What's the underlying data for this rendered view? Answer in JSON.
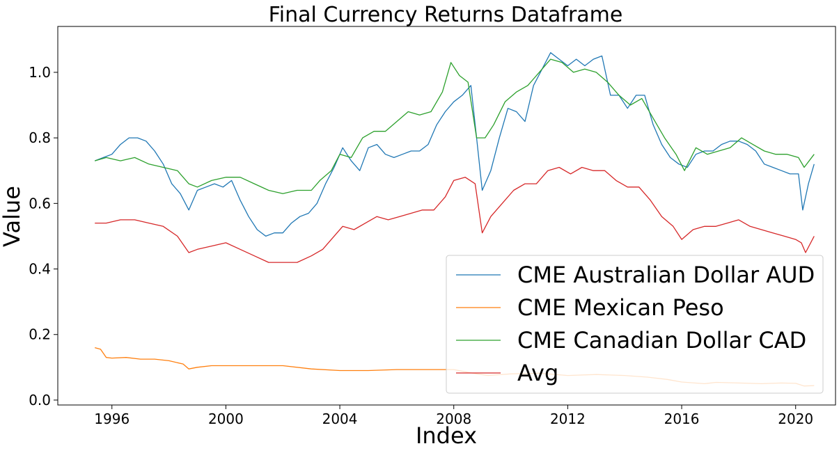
{
  "chart_data": {
    "type": "line",
    "title": "Final Currency Returns Dataframe",
    "xlabel": "Index",
    "ylabel": "Value",
    "xlim": [
      1994.1,
      2021.4
    ],
    "ylim": [
      -0.015,
      1.14
    ],
    "x_ticks": [
      {
        "value": 1996,
        "label": "1996"
      },
      {
        "value": 2000,
        "label": "2000"
      },
      {
        "value": 2004,
        "label": "2004"
      },
      {
        "value": 2008,
        "label": "2008"
      },
      {
        "value": 2012,
        "label": "2012"
      },
      {
        "value": 2016,
        "label": "2016"
      },
      {
        "value": 2020,
        "label": "2020"
      }
    ],
    "y_ticks": [
      {
        "value": 0.0,
        "label": "0.0"
      },
      {
        "value": 0.2,
        "label": "0.2"
      },
      {
        "value": 0.4,
        "label": "0.4"
      },
      {
        "value": 0.6,
        "label": "0.6"
      },
      {
        "value": 0.8,
        "label": "0.8"
      },
      {
        "value": 1.0,
        "label": "1.0"
      }
    ],
    "grid": false,
    "legend_position": "lower-right",
    "series": [
      {
        "name": "CME Australian Dollar AUD",
        "color": "#1f77b4",
        "x": [
          1995.4,
          1995.7,
          1996.0,
          1996.3,
          1996.6,
          1996.9,
          1997.2,
          1997.5,
          1997.8,
          1998.1,
          1998.4,
          1998.7,
          1999.0,
          1999.3,
          1999.6,
          1999.9,
          2000.2,
          2000.5,
          2000.8,
          2001.1,
          2001.4,
          2001.7,
          2002.0,
          2002.3,
          2002.6,
          2002.9,
          2003.2,
          2003.5,
          2003.8,
          2004.1,
          2004.4,
          2004.7,
          2005.0,
          2005.3,
          2005.6,
          2005.9,
          2006.2,
          2006.5,
          2006.8,
          2007.1,
          2007.4,
          2007.7,
          2008.0,
          2008.3,
          2008.6,
          2008.8,
          2009.0,
          2009.3,
          2009.6,
          2009.9,
          2010.2,
          2010.5,
          2010.8,
          2011.1,
          2011.4,
          2011.7,
          2012.0,
          2012.3,
          2012.6,
          2012.9,
          2013.2,
          2013.5,
          2013.8,
          2014.1,
          2014.4,
          2014.7,
          2015.0,
          2015.3,
          2015.6,
          2015.9,
          2016.2,
          2016.5,
          2016.8,
          2017.1,
          2017.4,
          2017.7,
          2018.0,
          2018.3,
          2018.6,
          2018.9,
          2019.2,
          2019.5,
          2019.8,
          2020.1,
          2020.25,
          2020.45,
          2020.65
        ],
        "values": [
          0.73,
          0.74,
          0.75,
          0.78,
          0.8,
          0.8,
          0.79,
          0.76,
          0.72,
          0.66,
          0.63,
          0.58,
          0.64,
          0.65,
          0.66,
          0.65,
          0.67,
          0.61,
          0.56,
          0.52,
          0.5,
          0.51,
          0.51,
          0.54,
          0.56,
          0.57,
          0.6,
          0.66,
          0.71,
          0.77,
          0.73,
          0.7,
          0.77,
          0.78,
          0.75,
          0.74,
          0.75,
          0.76,
          0.76,
          0.78,
          0.84,
          0.88,
          0.91,
          0.93,
          0.96,
          0.8,
          0.64,
          0.7,
          0.8,
          0.89,
          0.88,
          0.85,
          0.96,
          1.01,
          1.06,
          1.04,
          1.02,
          1.04,
          1.02,
          1.04,
          1.05,
          0.93,
          0.93,
          0.89,
          0.93,
          0.93,
          0.84,
          0.78,
          0.74,
          0.72,
          0.71,
          0.75,
          0.76,
          0.76,
          0.78,
          0.79,
          0.79,
          0.78,
          0.76,
          0.72,
          0.71,
          0.7,
          0.69,
          0.69,
          0.58,
          0.66,
          0.72
        ]
      },
      {
        "name": "CME Mexican Peso",
        "color": "#ff7f0e",
        "x": [
          1995.4,
          1995.6,
          1995.8,
          1996.0,
          1996.5,
          1997.0,
          1997.5,
          1998.0,
          1998.5,
          1998.7,
          1999.0,
          1999.5,
          2000.0,
          2001.0,
          2002.0,
          2003.0,
          2004.0,
          2005.0,
          2006.0,
          2007.0,
          2008.0,
          2008.8,
          2009.2,
          2010.0,
          2011.0,
          2012.0,
          2013.0,
          2014.0,
          2014.8,
          2015.5,
          2016.0,
          2016.8,
          2017.2,
          2018.0,
          2018.8,
          2019.5,
          2020.0,
          2020.3,
          2020.65
        ],
        "values": [
          0.16,
          0.155,
          0.13,
          0.128,
          0.13,
          0.125,
          0.125,
          0.12,
          0.11,
          0.095,
          0.1,
          0.105,
          0.105,
          0.105,
          0.105,
          0.095,
          0.09,
          0.09,
          0.093,
          0.093,
          0.093,
          0.08,
          0.075,
          0.08,
          0.082,
          0.075,
          0.078,
          0.075,
          0.07,
          0.063,
          0.055,
          0.05,
          0.054,
          0.052,
          0.05,
          0.052,
          0.051,
          0.043,
          0.044
        ]
      },
      {
        "name": "CME Canadian Dollar CAD",
        "color": "#2ca02c",
        "x": [
          1995.4,
          1995.8,
          1996.3,
          1996.8,
          1997.3,
          1997.8,
          1998.3,
          1998.7,
          1999.0,
          1999.5,
          2000.0,
          2000.5,
          2001.0,
          2001.5,
          2002.0,
          2002.5,
          2003.0,
          2003.3,
          2003.7,
          2004.0,
          2004.4,
          2004.8,
          2005.2,
          2005.6,
          2006.0,
          2006.4,
          2006.8,
          2007.2,
          2007.6,
          2007.9,
          2008.2,
          2008.5,
          2008.8,
          2009.1,
          2009.4,
          2009.8,
          2010.2,
          2010.6,
          2011.0,
          2011.4,
          2011.8,
          2012.2,
          2012.6,
          2013.0,
          2013.4,
          2013.8,
          2014.2,
          2014.6,
          2015.0,
          2015.4,
          2015.8,
          2016.1,
          2016.5,
          2016.9,
          2017.3,
          2017.7,
          2018.1,
          2018.5,
          2018.9,
          2019.3,
          2019.7,
          2020.1,
          2020.3,
          2020.65
        ],
        "values": [
          0.73,
          0.74,
          0.73,
          0.74,
          0.72,
          0.71,
          0.7,
          0.66,
          0.65,
          0.67,
          0.68,
          0.68,
          0.66,
          0.64,
          0.63,
          0.64,
          0.64,
          0.67,
          0.7,
          0.75,
          0.74,
          0.8,
          0.82,
          0.82,
          0.85,
          0.88,
          0.87,
          0.88,
          0.94,
          1.03,
          0.99,
          0.97,
          0.8,
          0.8,
          0.84,
          0.91,
          0.94,
          0.96,
          1.0,
          1.04,
          1.03,
          1.0,
          1.01,
          1.0,
          0.97,
          0.93,
          0.9,
          0.92,
          0.86,
          0.8,
          0.75,
          0.7,
          0.77,
          0.75,
          0.76,
          0.77,
          0.8,
          0.78,
          0.76,
          0.75,
          0.75,
          0.74,
          0.71,
          0.75
        ]
      },
      {
        "name": "Avg",
        "color": "#d62728",
        "x": [
          1995.4,
          1995.8,
          1996.3,
          1996.8,
          1997.3,
          1997.8,
          1998.3,
          1998.7,
          1999.0,
          1999.5,
          2000.0,
          2000.5,
          2001.0,
          2001.5,
          2002.0,
          2002.5,
          2003.0,
          2003.4,
          2003.8,
          2004.1,
          2004.5,
          2004.9,
          2005.3,
          2005.7,
          2006.1,
          2006.5,
          2006.9,
          2007.3,
          2007.7,
          2008.0,
          2008.4,
          2008.75,
          2009.0,
          2009.3,
          2009.7,
          2010.1,
          2010.5,
          2010.9,
          2011.3,
          2011.7,
          2012.1,
          2012.5,
          2012.9,
          2013.3,
          2013.7,
          2014.1,
          2014.5,
          2014.9,
          2015.3,
          2015.7,
          2016.0,
          2016.4,
          2016.8,
          2017.2,
          2017.6,
          2018.0,
          2018.4,
          2018.8,
          2019.2,
          2019.6,
          2020.0,
          2020.2,
          2020.35,
          2020.65
        ],
        "values": [
          0.54,
          0.54,
          0.55,
          0.55,
          0.54,
          0.53,
          0.5,
          0.45,
          0.46,
          0.47,
          0.48,
          0.46,
          0.44,
          0.42,
          0.42,
          0.42,
          0.44,
          0.46,
          0.5,
          0.53,
          0.52,
          0.54,
          0.56,
          0.55,
          0.56,
          0.57,
          0.58,
          0.58,
          0.62,
          0.67,
          0.68,
          0.66,
          0.51,
          0.56,
          0.6,
          0.64,
          0.66,
          0.66,
          0.7,
          0.71,
          0.69,
          0.71,
          0.7,
          0.7,
          0.67,
          0.65,
          0.65,
          0.61,
          0.56,
          0.53,
          0.49,
          0.52,
          0.53,
          0.53,
          0.54,
          0.55,
          0.53,
          0.52,
          0.51,
          0.5,
          0.49,
          0.48,
          0.45,
          0.5
        ]
      }
    ]
  }
}
